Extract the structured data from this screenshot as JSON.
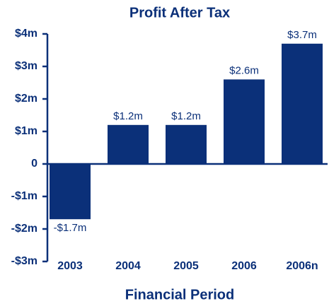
{
  "chart_data": {
    "type": "bar",
    "title": "Profit After Tax",
    "x_label": "Financial Period",
    "categories": [
      "2003",
      "2004",
      "2005",
      "2006",
      "2006n"
    ],
    "values": [
      -1.7,
      1.2,
      1.2,
      2.6,
      3.7
    ],
    "value_labels": [
      "-$1.7m",
      "$1.2m",
      "$1.2m",
      "$2.6m",
      "$3.7m"
    ],
    "color": "#0b3079",
    "ylim": [
      -3,
      4
    ],
    "yticks": [
      {
        "value": -3,
        "label": "-$3m"
      },
      {
        "value": -2,
        "label": "-$2m"
      },
      {
        "value": -1,
        "label": "-$1m"
      },
      0,
      {
        "value": 1,
        "label": "$1m"
      },
      {
        "value": 2,
        "label": "$2m"
      },
      {
        "value": 3,
        "label": "$3m"
      },
      {
        "value": 4,
        "label": "$4m"
      }
    ],
    "grid": false
  }
}
